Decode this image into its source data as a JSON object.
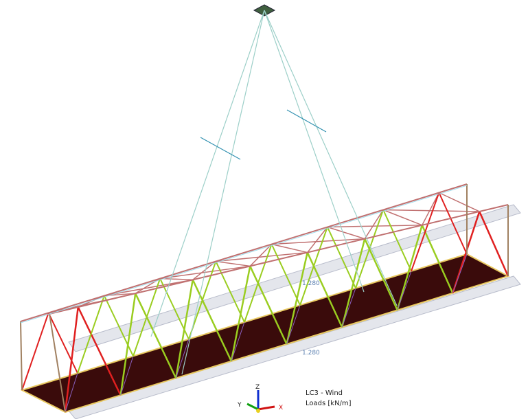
{
  "load_labels": [
    "1.280",
    "1.280"
  ],
  "legend": {
    "case": "LC3 - Wind",
    "unit": "Loads [kN/m]"
  },
  "axes": {
    "z": "Z",
    "y": "Y",
    "x": "X"
  }
}
